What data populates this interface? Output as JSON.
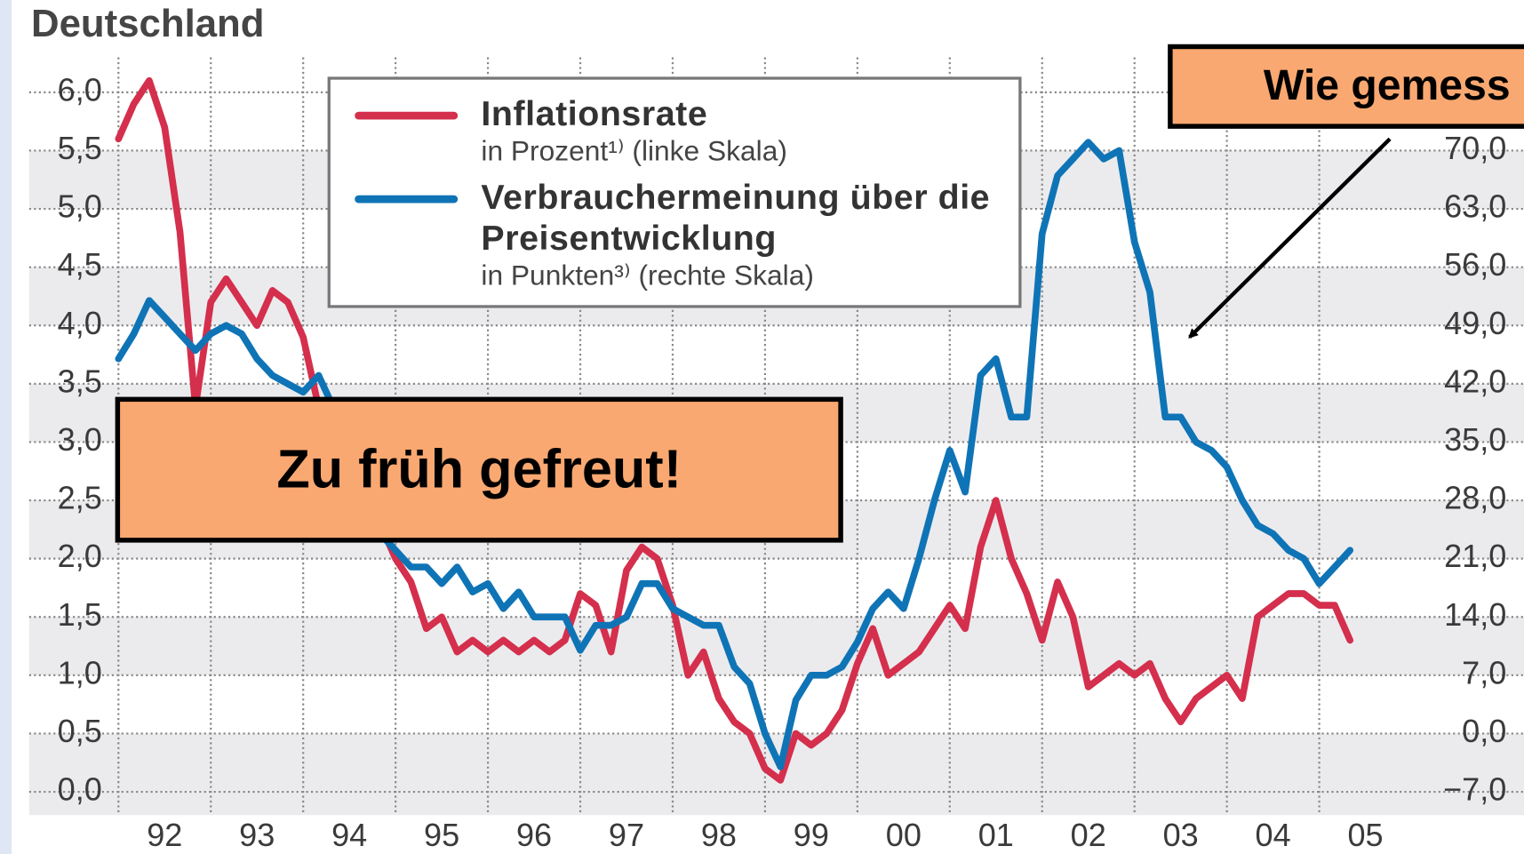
{
  "chart_data": {
    "type": "line",
    "title": "Deutschland",
    "x": [
      0,
      2,
      4,
      6,
      8,
      10,
      12,
      14,
      16,
      18,
      20,
      22,
      24,
      26,
      28,
      30,
      32,
      34,
      36,
      38,
      40,
      42,
      44,
      46,
      48,
      50,
      52,
      54,
      56,
      58,
      60,
      62,
      64,
      66,
      68,
      70,
      72,
      74,
      76,
      78,
      80,
      82,
      84,
      86,
      88,
      90,
      92,
      94,
      96,
      98,
      100,
      102,
      104,
      106,
      108,
      110,
      112,
      114,
      116,
      118,
      120,
      122,
      124,
      126,
      128,
      130,
      132,
      134,
      136,
      138,
      140,
      142,
      144,
      146,
      148,
      150,
      152,
      154,
      156,
      158,
      160
    ],
    "xlim": [
      -11.6,
      182.6
    ],
    "xticks": [
      {
        "value": 0,
        "label": "92"
      },
      {
        "value": 12,
        "label": "93"
      },
      {
        "value": 24,
        "label": "94"
      },
      {
        "value": 36,
        "label": "95"
      },
      {
        "value": 48,
        "label": "96"
      },
      {
        "value": 60,
        "label": "97"
      },
      {
        "value": 72,
        "label": "98"
      },
      {
        "value": 84,
        "label": "99"
      },
      {
        "value": 96,
        "label": "00"
      },
      {
        "value": 108,
        "label": "01"
      },
      {
        "value": 120,
        "label": "02"
      },
      {
        "value": 132,
        "label": "03"
      },
      {
        "value": 144,
        "label": "04"
      },
      {
        "value": 156,
        "label": "05"
      }
    ],
    "ylim": [
      -0.2,
      6.3
    ],
    "yticks": [
      {
        "value": 0,
        "label": "0,0"
      },
      {
        "value": 0.5,
        "label": "0,5"
      },
      {
        "value": 1,
        "label": "1,0"
      },
      {
        "value": 1.5,
        "label": "1,5"
      },
      {
        "value": 2,
        "label": "2,0"
      },
      {
        "value": 2.5,
        "label": "2,5"
      },
      {
        "value": 3,
        "label": "3,0"
      },
      {
        "value": 3.5,
        "label": "3,5"
      },
      {
        "value": 4,
        "label": "4,0"
      },
      {
        "value": 4.5,
        "label": "4,5"
      },
      {
        "value": 5,
        "label": "5,0"
      },
      {
        "value": 5.5,
        "label": "5,5"
      },
      {
        "value": 6,
        "label": "6,0"
      }
    ],
    "y2lim": [
      -9.8,
      81.2
    ],
    "y2ticks": [
      {
        "value": -7,
        "label": "−7,0"
      },
      {
        "value": 0,
        "label": "0,0"
      },
      {
        "value": 7,
        "label": "7,0"
      },
      {
        "value": 14,
        "label": "14,0"
      },
      {
        "value": 21,
        "label": "21,0"
      },
      {
        "value": 28,
        "label": "28,0"
      },
      {
        "value": 35,
        "label": "35,0"
      },
      {
        "value": 42,
        "label": "42,0"
      },
      {
        "value": 49,
        "label": "49,0"
      },
      {
        "value": 56,
        "label": "56,0"
      },
      {
        "value": 63,
        "label": "63,0"
      },
      {
        "value": 70,
        "label": "70,0"
      }
    ],
    "grid": true,
    "series": [
      {
        "name": "Inflationsrate",
        "note": "in Prozent¹⁾ (linke Skala)",
        "color": "#d42f4c",
        "values": [
          5.6,
          5.9,
          6.1,
          5.7,
          4.8,
          3.3,
          4.2,
          4.4,
          4.2,
          4.0,
          4.3,
          4.2,
          3.9,
          3.3,
          3.0,
          2.8,
          2.6,
          2.3,
          2.0,
          1.8,
          1.4,
          1.5,
          1.2,
          1.3,
          1.2,
          1.3,
          1.2,
          1.3,
          1.2,
          1.3,
          1.7,
          1.6,
          1.2,
          1.9,
          2.1,
          2.0,
          1.6,
          1.0,
          1.2,
          0.8,
          0.6,
          0.5,
          0.2,
          0.1,
          0.5,
          0.4,
          0.5,
          0.7,
          1.1,
          1.4,
          1.0,
          1.1,
          1.2,
          1.4,
          1.6,
          1.4,
          2.1,
          2.5,
          2.0,
          1.7,
          1.3,
          1.8,
          1.5,
          0.9,
          1.0,
          1.1,
          1.0,
          1.1,
          0.8,
          0.6,
          0.8,
          0.9,
          1.0,
          0.8,
          1.5,
          1.6,
          1.7,
          1.7,
          1.6,
          1.6,
          1.3
        ]
      },
      {
        "name": "Verbrauchermeinung über die Preisentwicklung",
        "note": "in Punkten³⁾ (rechte Skala)",
        "color": "#0f74b6",
        "axis": "y2",
        "values": [
          45,
          48,
          52,
          50,
          48,
          46,
          48,
          49,
          48,
          45,
          43,
          42,
          41,
          43,
          39,
          35,
          29,
          24,
          22,
          20,
          20,
          18,
          20,
          17,
          18,
          15,
          17,
          14,
          14,
          14,
          10,
          13,
          13,
          14,
          18,
          18,
          15,
          14,
          13,
          13,
          8,
          6,
          0,
          -4,
          4,
          7,
          7,
          8,
          11,
          15,
          17,
          15,
          21,
          28,
          34,
          29,
          43,
          45,
          38,
          38,
          60,
          67,
          69,
          71,
          69,
          70,
          59,
          53,
          38,
          38,
          35,
          34,
          32,
          28,
          25,
          24,
          22,
          21,
          18,
          20,
          22
        ]
      }
    ],
    "annotations": [
      "Zu früh gefreut!",
      "Wie gemess"
    ]
  }
}
